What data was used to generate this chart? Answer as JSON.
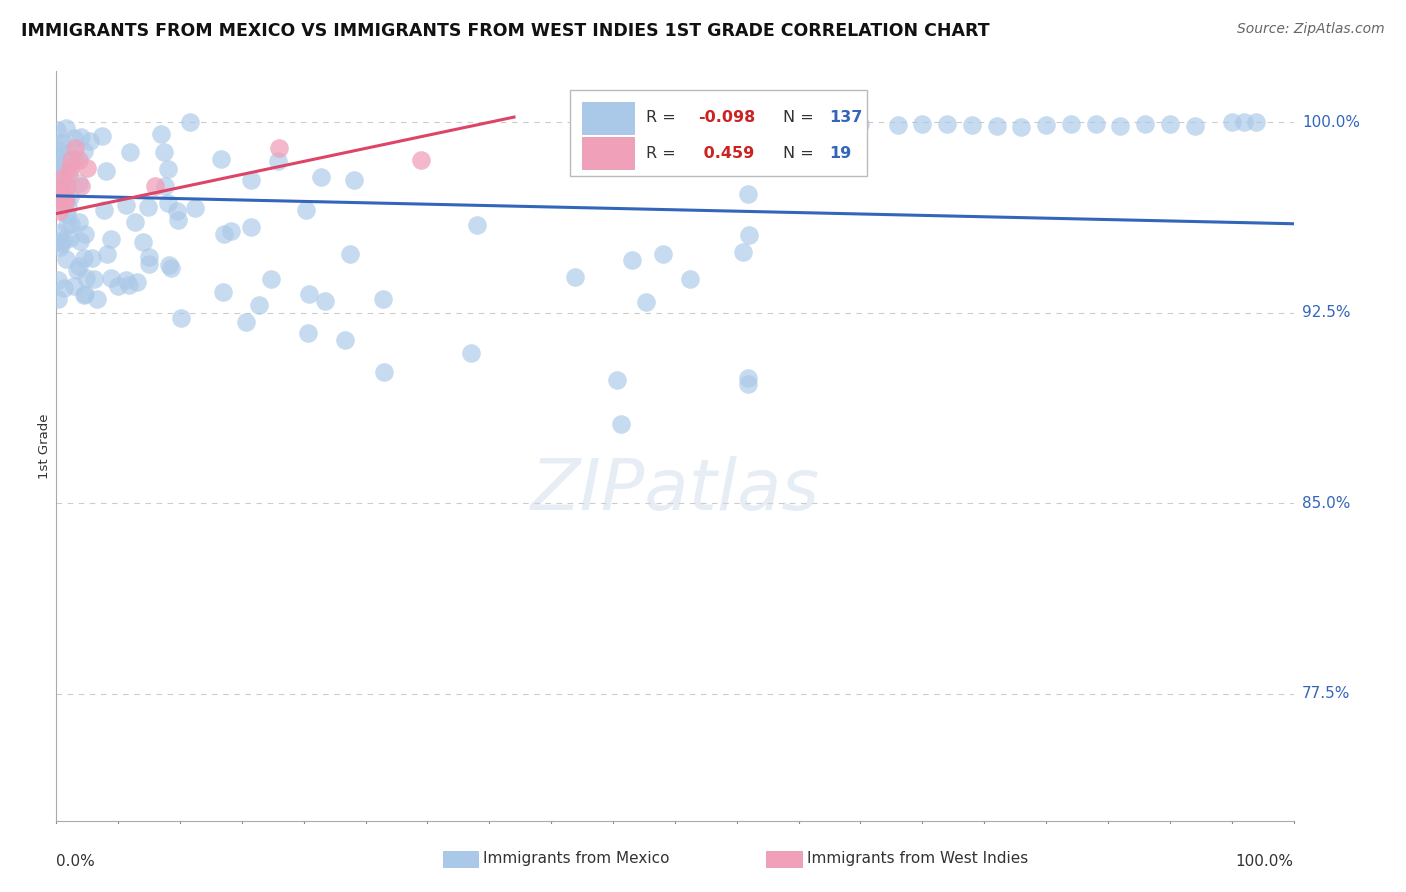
{
  "title": "IMMIGRANTS FROM MEXICO VS IMMIGRANTS FROM WEST INDIES 1ST GRADE CORRELATION CHART",
  "source": "Source: ZipAtlas.com",
  "ylabel": "1st Grade",
  "ytick_labels": [
    "100.0%",
    "92.5%",
    "85.0%",
    "77.5%"
  ],
  "ytick_values": [
    1.0,
    0.925,
    0.85,
    0.775
  ],
  "legend_blue_r": "-0.098",
  "legend_blue_n": "137",
  "legend_pink_r": "0.459",
  "legend_pink_n": "19",
  "blue_color": "#aac8e8",
  "pink_color": "#f0a0b8",
  "blue_line_color": "#3366bb",
  "pink_line_color": "#dd4466",
  "grid_color": "#cccccc",
  "watermark": "ZIPatlas",
  "blue_line_x0": 0.0,
  "blue_line_y0": 0.971,
  "blue_line_x1": 1.0,
  "blue_line_y1": 0.96,
  "pink_line_x0": 0.0,
  "pink_line_y0": 0.964,
  "pink_line_x1": 0.37,
  "pink_line_y1": 1.002,
  "xlim": [
    0.0,
    1.0
  ],
  "ylim": [
    0.725,
    1.02
  ]
}
